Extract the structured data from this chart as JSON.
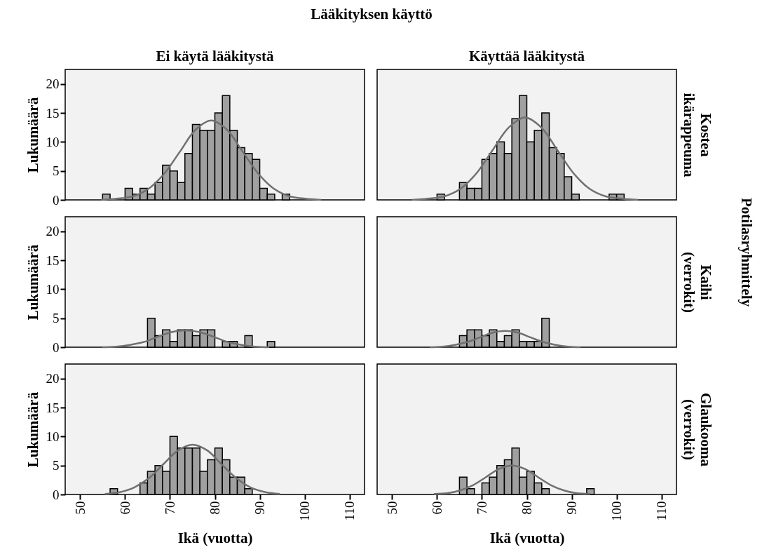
{
  "chart_data": [
    {
      "type": "histogram",
      "title": "Ei käytä lääkitystä",
      "ylabel": "Lukumäärä",
      "annotations": [
        "Lääkityksen käyttö"
      ],
      "color": "#a0a0a0",
      "xlim": [
        46.67,
        113.33
      ],
      "xticks": [
        50,
        60,
        70,
        80,
        90,
        100,
        110
      ],
      "ylim": [
        0,
        22.5
      ],
      "yticks": [
        0,
        5,
        10,
        15,
        20
      ],
      "tick_labels": "y",
      "bins": [
        55,
        56.67,
        58.33,
        60,
        61.67,
        63.33,
        65,
        66.67,
        68.33,
        70,
        71.67,
        73.33,
        75,
        76.67,
        78.33,
        80,
        81.67,
        83.33,
        85,
        86.67,
        88.33,
        90,
        91.67,
        93.33,
        95,
        96.67
      ],
      "values": [
        1,
        0,
        0,
        2,
        1,
        2,
        1,
        3,
        6,
        5,
        3,
        8,
        13,
        12,
        12,
        15,
        18,
        12,
        9,
        8,
        7,
        2,
        1,
        0,
        1
      ],
      "series": [
        {
          "type": "line",
          "color": "#707070",
          "x": [
            54.7,
            58.2,
            61.7,
            65.2,
            68.7,
            72.2,
            75.7,
            79.2,
            82.7,
            86.2,
            89.7,
            93.2,
            96.7,
            100.2,
            103.7
          ],
          "values": [
            0.0,
            0.2,
            0.6,
            1.9,
            4.5,
            8.3,
            12.1,
            13.7,
            12.1,
            8.3,
            4.5,
            1.9,
            0.6,
            0.2,
            0.0
          ]
        }
      ]
    },
    {
      "type": "histogram",
      "title": "Käyttää lääkitystä",
      "y2label": "Kostea ikärappeuma",
      "annotations": [
        "Potilasryhmittely"
      ],
      "color": "#a0a0a0",
      "xlim": [
        46.67,
        113.33
      ],
      "xticks": [
        50,
        60,
        70,
        80,
        90,
        100,
        110
      ],
      "ylim": [
        0,
        22.5
      ],
      "yticks": [
        0,
        5,
        10,
        15,
        20
      ],
      "tick_labels": false,
      "bins": [
        60,
        61.67,
        63.33,
        65,
        66.67,
        68.33,
        70,
        71.67,
        73.33,
        75,
        76.67,
        78.33,
        80,
        81.67,
        83.33,
        85,
        86.67,
        88.33,
        90,
        91.67,
        93.33,
        95,
        96.67,
        98.33,
        100,
        101.67
      ],
      "values": [
        1,
        0,
        0,
        3,
        2,
        2,
        7,
        8,
        10,
        8,
        14,
        18,
        10,
        12,
        15,
        9,
        8,
        4,
        1,
        0,
        0,
        0,
        0,
        1,
        1
      ],
      "series": [
        {
          "type": "line",
          "color": "#707070",
          "x": [
            54.4,
            57.9,
            61.6,
            65.2,
            68.8,
            72.4,
            76.0,
            79.6,
            83.2,
            86.8,
            90.4,
            94.0,
            97.6,
            101.2,
            104.8
          ],
          "values": [
            0.0,
            0.2,
            0.6,
            1.9,
            4.6,
            8.6,
            12.5,
            14.2,
            12.5,
            8.6,
            4.6,
            1.9,
            0.6,
            0.2,
            0.0
          ]
        }
      ]
    },
    {
      "type": "histogram",
      "ylabel": "Lukumäärä",
      "color": "#a0a0a0",
      "xlim": [
        46.67,
        113.33
      ],
      "xticks": [
        50,
        60,
        70,
        80,
        90,
        100,
        110
      ],
      "ylim": [
        0,
        22.5
      ],
      "yticks": [
        0,
        5,
        10,
        15,
        20
      ],
      "tick_labels": "y",
      "bins": [
        65,
        66.67,
        68.33,
        70,
        71.67,
        73.33,
        75,
        76.67,
        78.33,
        80,
        81.67,
        83.33,
        85,
        86.67,
        88.33,
        90,
        91.67,
        93.33
      ],
      "values": [
        5,
        2,
        3,
        1,
        3,
        3,
        2,
        3,
        3,
        0,
        1,
        1,
        0,
        2,
        0,
        0,
        1
      ],
      "series": [
        {
          "type": "line",
          "color": "#707070",
          "x": [
            54.9,
            58.0,
            61.1,
            64.2,
            67.3,
            70.4,
            73.5,
            76.6,
            79.7,
            82.8,
            85.9,
            89.0,
            92.1
          ],
          "values": [
            0.0,
            0.1,
            0.4,
            0.9,
            1.8,
            2.6,
            2.9,
            2.6,
            1.8,
            0.9,
            0.4,
            0.1,
            0.0
          ]
        }
      ]
    },
    {
      "type": "histogram",
      "y2label": "Kaihi (verrokit)",
      "color": "#a0a0a0",
      "xlim": [
        46.67,
        113.33
      ],
      "xticks": [
        50,
        60,
        70,
        80,
        90,
        100,
        110
      ],
      "ylim": [
        0,
        22.5
      ],
      "yticks": [
        0,
        5,
        10,
        15,
        20
      ],
      "tick_labels": false,
      "bins": [
        65,
        66.67,
        68.33,
        70,
        71.67,
        73.33,
        75,
        76.67,
        78.33,
        80,
        81.67,
        83.33,
        85
      ],
      "values": [
        2,
        3,
        3,
        2,
        3,
        1,
        2,
        3,
        1,
        1,
        1,
        5
      ],
      "series": [
        {
          "type": "line",
          "color": "#707070",
          "x": [
            58.4,
            61.2,
            64.0,
            66.8,
            69.6,
            72.4,
            75.2,
            78.0,
            80.8,
            83.6,
            86.4,
            89.2,
            92.0
          ],
          "values": [
            0.0,
            0.1,
            0.4,
            0.9,
            1.7,
            2.5,
            2.8,
            2.5,
            1.7,
            0.9,
            0.4,
            0.1,
            0.0
          ]
        }
      ]
    },
    {
      "type": "histogram",
      "xlabel": "Ikä (vuotta)",
      "ylabel": "Lukumäärä",
      "color": "#a0a0a0",
      "xlim": [
        46.67,
        113.33
      ],
      "xticks": [
        50,
        60,
        70,
        80,
        90,
        100,
        110
      ],
      "ylim": [
        0,
        22.5
      ],
      "yticks": [
        0,
        5,
        10,
        15,
        20
      ],
      "bins": [
        56.67,
        58.33,
        60,
        61.67,
        63.33,
        65,
        66.67,
        68.33,
        70,
        71.67,
        73.33,
        75,
        76.67,
        78.33,
        80,
        81.67,
        83.33,
        85,
        86.67,
        88.33
      ],
      "values": [
        1,
        0,
        0,
        0,
        2,
        4,
        5,
        4,
        10,
        8,
        8,
        8,
        4,
        6,
        8,
        6,
        3,
        3,
        1
      ],
      "series": [
        {
          "type": "line",
          "color": "#707070",
          "x": [
            55.5,
            58.8,
            62.0,
            65.3,
            68.5,
            71.8,
            75.0,
            78.3,
            81.5,
            84.8,
            88.0,
            91.3,
            94.5
          ],
          "values": [
            0.1,
            0.4,
            1.2,
            2.8,
            5.2,
            7.6,
            8.6,
            7.6,
            5.2,
            2.8,
            1.2,
            0.4,
            0.1
          ]
        }
      ]
    },
    {
      "type": "histogram",
      "xlabel": "Ikä (vuotta)",
      "y2label": "Glaukooma (verrokit)",
      "color": "#a0a0a0",
      "xlim": [
        46.67,
        113.33
      ],
      "xticks": [
        50,
        60,
        70,
        80,
        90,
        100,
        110
      ],
      "ylim": [
        0,
        22.5
      ],
      "yticks": [
        0,
        5,
        10,
        15,
        20
      ],
      "tick_labels": "x",
      "bins": [
        65,
        66.67,
        68.33,
        70,
        71.67,
        73.33,
        75,
        76.67,
        78.33,
        80,
        81.67,
        83.33,
        85,
        86.67,
        88.33,
        90,
        91.67,
        93.33,
        95
      ],
      "values": [
        3,
        1,
        0,
        2,
        3,
        5,
        6,
        8,
        3,
        4,
        2,
        1,
        0,
        0,
        0,
        0,
        0,
        1
      ],
      "series": [
        {
          "type": "line",
          "color": "#707070",
          "x": [
            59.3,
            62.2,
            65.1,
            68.0,
            70.9,
            73.8,
            76.7,
            79.6,
            82.5,
            85.4,
            88.3,
            91.2,
            94.1
          ],
          "values": [
            0.1,
            0.2,
            0.7,
            1.6,
            3.0,
            4.4,
            5.0,
            4.4,
            3.0,
            1.6,
            0.7,
            0.2,
            0.1
          ]
        }
      ]
    }
  ]
}
